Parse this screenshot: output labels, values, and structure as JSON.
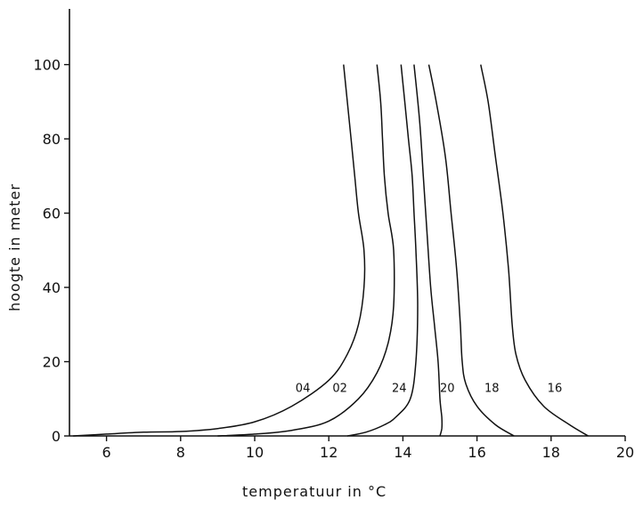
{
  "chart_data": {
    "type": "line",
    "title": "",
    "xlabel": "temperatuur  in  °C",
    "ylabel": "hoogte  in  meter",
    "xlim": [
      5,
      20
    ],
    "ylim": [
      0,
      115
    ],
    "xticks": [
      6,
      8,
      10,
      12,
      14,
      16,
      18,
      20
    ],
    "yticks": [
      0,
      20,
      40,
      60,
      80,
      100
    ],
    "grid": false,
    "legend": "none",
    "series": [
      {
        "name": "04",
        "label_at": [
          11.3,
          13
        ],
        "points": [
          [
            5.1,
            0
          ],
          [
            6,
            0.5
          ],
          [
            7,
            1
          ],
          [
            8,
            1.2
          ],
          [
            9,
            2
          ],
          [
            10,
            3.8
          ],
          [
            11,
            8
          ],
          [
            12,
            15
          ],
          [
            12.5,
            22
          ],
          [
            12.8,
            30
          ],
          [
            12.95,
            40
          ],
          [
            12.95,
            50
          ],
          [
            12.8,
            60
          ],
          [
            12.7,
            70
          ],
          [
            12.6,
            80
          ],
          [
            12.5,
            90
          ],
          [
            12.4,
            100
          ]
        ]
      },
      {
        "name": "02",
        "label_at": [
          12.3,
          13
        ],
        "points": [
          [
            9,
            0
          ],
          [
            10,
            0.5
          ],
          [
            11,
            1.5
          ],
          [
            12,
            4
          ],
          [
            12.8,
            10
          ],
          [
            13.3,
            17
          ],
          [
            13.6,
            25
          ],
          [
            13.75,
            35
          ],
          [
            13.75,
            50
          ],
          [
            13.6,
            60
          ],
          [
            13.5,
            70
          ],
          [
            13.45,
            80
          ],
          [
            13.4,
            90
          ],
          [
            13.3,
            100
          ]
        ]
      },
      {
        "name": "24",
        "label_at": [
          13.9,
          13
        ],
        "points": [
          [
            12.5,
            0
          ],
          [
            13,
            1
          ],
          [
            13.5,
            3
          ],
          [
            13.8,
            5
          ],
          [
            14.2,
            10
          ],
          [
            14.35,
            20
          ],
          [
            14.4,
            35
          ],
          [
            14.35,
            50
          ],
          [
            14.3,
            60
          ],
          [
            14.25,
            70
          ],
          [
            14.15,
            80
          ],
          [
            14.05,
            90
          ],
          [
            13.95,
            100
          ]
        ]
      },
      {
        "name": "20",
        "label_at": [
          15.2,
          13
        ],
        "points": [
          [
            15,
            0
          ],
          [
            15.05,
            2
          ],
          [
            15.05,
            5
          ],
          [
            15,
            10
          ],
          [
            14.95,
            20
          ],
          [
            14.85,
            30
          ],
          [
            14.75,
            40
          ],
          [
            14.65,
            55
          ],
          [
            14.55,
            70
          ],
          [
            14.45,
            85
          ],
          [
            14.3,
            100
          ]
        ]
      },
      {
        "name": "18",
        "label_at": [
          16.4,
          13
        ],
        "points": [
          [
            17,
            0
          ],
          [
            16.5,
            3
          ],
          [
            16,
            8
          ],
          [
            15.7,
            14
          ],
          [
            15.6,
            20
          ],
          [
            15.55,
            30
          ],
          [
            15.45,
            45
          ],
          [
            15.3,
            60
          ],
          [
            15.15,
            75
          ],
          [
            14.9,
            90
          ],
          [
            14.7,
            100
          ]
        ]
      },
      {
        "name": "16",
        "label_at": [
          18.1,
          13
        ],
        "points": [
          [
            19,
            0
          ],
          [
            18.5,
            3
          ],
          [
            17.8,
            8
          ],
          [
            17.3,
            15
          ],
          [
            17.05,
            22
          ],
          [
            16.95,
            30
          ],
          [
            16.85,
            45
          ],
          [
            16.7,
            60
          ],
          [
            16.5,
            75
          ],
          [
            16.3,
            90
          ],
          [
            16.1,
            100
          ]
        ]
      }
    ]
  }
}
